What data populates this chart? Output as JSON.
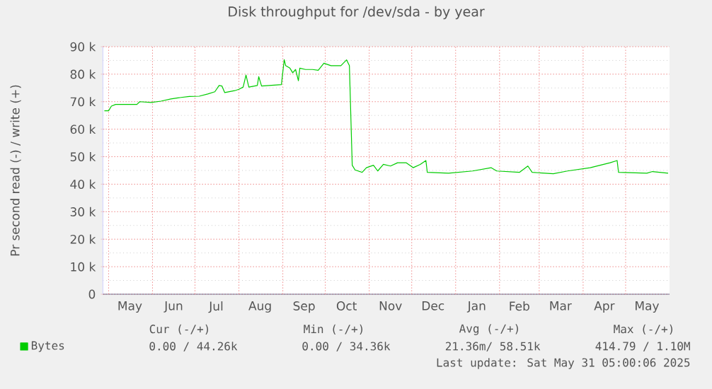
{
  "chart_data": {
    "type": "line",
    "title": "Disk throughput for /dev/sda - by year",
    "ylabel": "Pr second read (-) / write (+)",
    "xlim": [
      "2024-04-27",
      "2025-06-01"
    ],
    "xticks": [
      {
        "value": "2024-05-01",
        "label": null
      },
      {
        "value": "2024-06-01",
        "label": null
      },
      {
        "value": "2024-07-01",
        "label": null
      },
      {
        "value": "2024-08-01",
        "label": null
      },
      {
        "value": "2024-09-01",
        "label": null
      },
      {
        "value": "2024-10-01",
        "label": null
      },
      {
        "value": "2024-11-01",
        "label": null
      },
      {
        "value": "2024-12-01",
        "label": null
      },
      {
        "value": "2025-01-01",
        "label": null
      },
      {
        "value": "2025-02-01",
        "label": null
      },
      {
        "value": "2025-03-01",
        "label": null
      },
      {
        "value": "2025-04-01",
        "label": null
      },
      {
        "value": "2025-05-01",
        "label": null
      },
      {
        "value": "2024-05-16",
        "label": "May"
      },
      {
        "value": "2024-06-16",
        "label": "Jun"
      },
      {
        "value": "2024-07-16",
        "label": "Jul"
      },
      {
        "value": "2024-08-16",
        "label": "Aug"
      },
      {
        "value": "2024-09-16",
        "label": "Sep"
      },
      {
        "value": "2024-10-16",
        "label": "Oct"
      },
      {
        "value": "2024-11-16",
        "label": "Nov"
      },
      {
        "value": "2024-12-16",
        "label": "Dec"
      },
      {
        "value": "2025-01-16",
        "label": "Jan"
      },
      {
        "value": "2025-02-15",
        "label": "Feb"
      },
      {
        "value": "2025-03-16",
        "label": "Mar"
      },
      {
        "value": "2025-04-16",
        "label": "Apr"
      },
      {
        "value": "2025-05-16",
        "label": "May"
      }
    ],
    "ylim": [
      0,
      90000
    ],
    "yticks": [
      {
        "value": 0,
        "label": "0"
      },
      {
        "value": 10000,
        "label": "10 k"
      },
      {
        "value": 20000,
        "label": "20 k"
      },
      {
        "value": 30000,
        "label": "30 k"
      },
      {
        "value": 40000,
        "label": "40 k"
      },
      {
        "value": 50000,
        "label": "50 k"
      },
      {
        "value": 60000,
        "label": "60 k"
      },
      {
        "value": 70000,
        "label": "70 k"
      },
      {
        "value": 80000,
        "label": "80 k"
      },
      {
        "value": 90000,
        "label": "90 k"
      }
    ],
    "grid": true,
    "legend": "bottom",
    "series": [
      {
        "name": "Bytes",
        "color": "#00cc00",
        "x": [
          "2024-04-28",
          "2024-05-01",
          "2024-05-03",
          "2024-05-06",
          "2024-05-21",
          "2024-05-23",
          "2024-05-31",
          "2024-06-07",
          "2024-06-14",
          "2024-06-19",
          "2024-06-27",
          "2024-07-04",
          "2024-07-10",
          "2024-07-15",
          "2024-07-18",
          "2024-07-20",
          "2024-07-22",
          "2024-07-29",
          "2024-08-01",
          "2024-08-04",
          "2024-08-06",
          "2024-08-08",
          "2024-08-14",
          "2024-08-15",
          "2024-08-17",
          "2024-08-31",
          "2024-09-02",
          "2024-09-03",
          "2024-09-06",
          "2024-09-08",
          "2024-09-10",
          "2024-09-12",
          "2024-09-13",
          "2024-09-17",
          "2024-09-22",
          "2024-09-26",
          "2024-09-30",
          "2024-10-05",
          "2024-10-12",
          "2024-10-16",
          "2024-10-18",
          "2024-10-20",
          "2024-10-22",
          "2024-10-27",
          "2024-10-30",
          "2024-11-04",
          "2024-11-07",
          "2024-11-11",
          "2024-11-16",
          "2024-11-21",
          "2024-11-27",
          "2024-12-02",
          "2024-12-07",
          "2024-12-11",
          "2024-12-12",
          "2024-12-27",
          "2025-01-13",
          "2025-01-26",
          "2025-01-30",
          "2025-02-15",
          "2025-02-21",
          "2025-02-24",
          "2025-03-11",
          "2025-03-21",
          "2025-04-06",
          "2025-04-20",
          "2025-04-25",
          "2025-04-26",
          "2025-05-16",
          "2025-05-20",
          "2025-05-31"
        ],
        "values": [
          66700,
          66700,
          68400,
          69000,
          69000,
          70000,
          69700,
          70200,
          71000,
          71400,
          71900,
          72000,
          72800,
          73600,
          75900,
          75700,
          73300,
          74000,
          74500,
          75300,
          79700,
          75300,
          75900,
          79100,
          75700,
          76200,
          85300,
          83100,
          82200,
          80500,
          81700,
          77600,
          82200,
          81700,
          81700,
          81400,
          84000,
          83100,
          83100,
          85200,
          83100,
          46900,
          45200,
          44300,
          46000,
          46900,
          44800,
          47200,
          46600,
          47800,
          47800,
          46000,
          47200,
          48600,
          44300,
          44000,
          44800,
          46000,
          44800,
          44300,
          46600,
          44300,
          43800,
          44800,
          46000,
          47800,
          48600,
          44300,
          44000,
          44600,
          44000
        ]
      }
    ],
    "annotations": [
      "Cur (-/+)",
      "Min (-/+)",
      "Avg (-/+)",
      "Max (-/+)",
      "0.00 / 44.26k",
      "0.00 / 34.36k",
      "21.36m/ 58.51k",
      "414.79 / 1.10M",
      "Last update: Sat May 31 05:00:06 2025"
    ]
  }
}
